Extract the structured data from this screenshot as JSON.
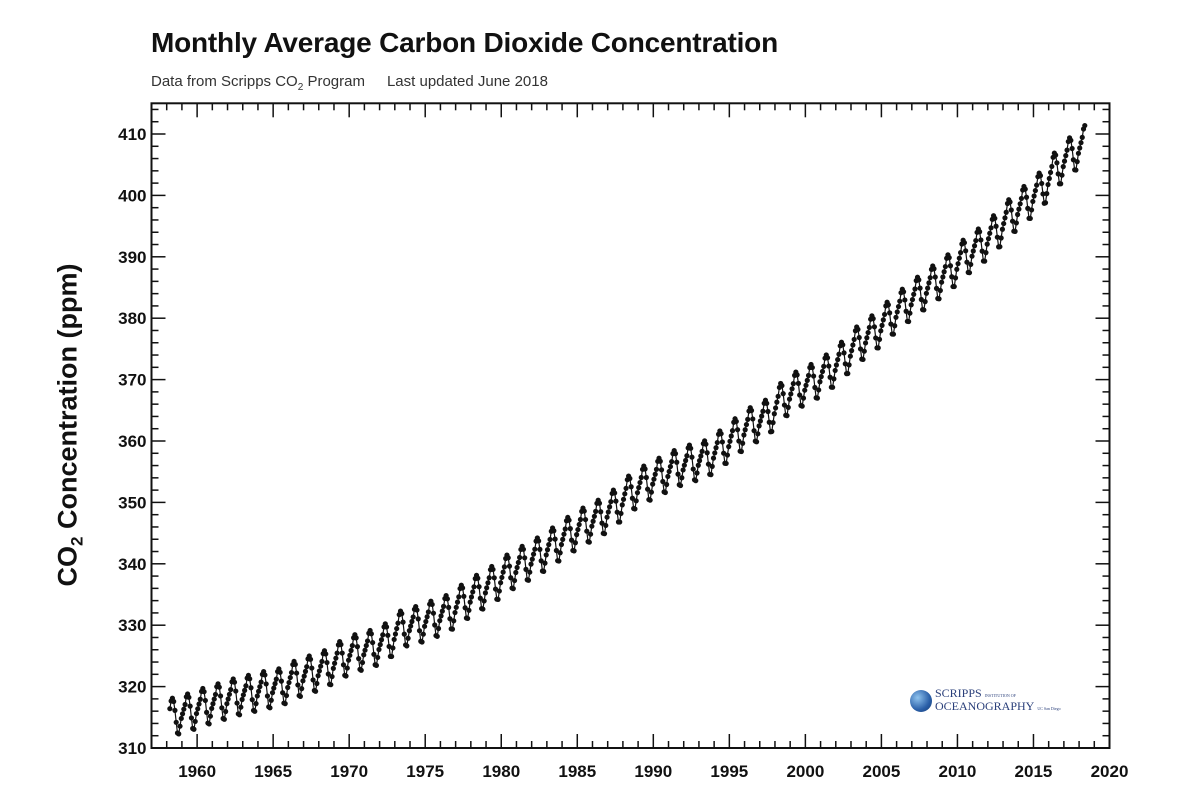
{
  "chart_data": {
    "type": "scatter",
    "title": "Monthly Average Carbon Dioxide Concentration",
    "subtitle_source_prefix": "Data from Scripps CO",
    "subtitle_source_sub": "2",
    "subtitle_source_suffix": " Program",
    "subtitle_updated": "Last updated June 2018",
    "ylabel_prefix": "CO",
    "ylabel_sub": "2",
    "ylabel_suffix": " Concentration (ppm)",
    "xlabel": "",
    "xlim": [
      1957,
      2020
    ],
    "ylim": [
      310,
      415
    ],
    "x_ticks": [
      "1960",
      "1965",
      "1970",
      "1975",
      "1980",
      "1985",
      "1990",
      "1995",
      "2000",
      "2005",
      "2010",
      "2015",
      "2020"
    ],
    "y_ticks": [
      "310",
      "320",
      "330",
      "340",
      "350",
      "360",
      "370",
      "380",
      "390",
      "400",
      "410"
    ],
    "grid": false,
    "legend": "none",
    "marker": "filled circle joined by line",
    "series_color": "#111111",
    "data_start": "1958-03",
    "data_end": "2018-05",
    "annual_mean_years": [
      1958,
      1959,
      1960,
      1961,
      1962,
      1963,
      1964,
      1965,
      1966,
      1967,
      1968,
      1969,
      1970,
      1971,
      1972,
      1973,
      1974,
      1975,
      1976,
      1977,
      1978,
      1979,
      1980,
      1981,
      1982,
      1983,
      1984,
      1985,
      1986,
      1987,
      1988,
      1989,
      1990,
      1991,
      1992,
      1993,
      1994,
      1995,
      1996,
      1997,
      1998,
      1999,
      2000,
      2001,
      2002,
      2003,
      2004,
      2005,
      2006,
      2007,
      2008,
      2009,
      2010,
      2011,
      2012,
      2013,
      2014,
      2015,
      2016,
      2017,
      2018
    ],
    "annual_mean_ppm": [
      315.3,
      315.98,
      316.91,
      317.64,
      318.45,
      318.99,
      319.62,
      320.04,
      321.37,
      322.18,
      323.05,
      324.62,
      325.68,
      326.32,
      327.46,
      329.68,
      330.19,
      331.12,
      332.03,
      333.84,
      335.41,
      336.84,
      338.76,
      340.12,
      341.48,
      343.15,
      344.87,
      346.35,
      347.61,
      349.31,
      351.69,
      353.2,
      354.45,
      355.7,
      356.54,
      357.21,
      358.96,
      360.97,
      362.74,
      363.88,
      366.84,
      368.54,
      369.71,
      371.32,
      373.45,
      375.98,
      377.7,
      379.98,
      382.09,
      384.02,
      385.83,
      387.64,
      390.1,
      391.85,
      394.06,
      396.74,
      398.81,
      401.01,
      404.41,
      406.76,
      408.72
    ],
    "seasonal_offset_ppm_jan_to_dec": [
      -0.1,
      0.6,
      1.3,
      2.5,
      2.9,
      2.3,
      0.8,
      -1.2,
      -3.0,
      -3.2,
      -2.0,
      -0.8
    ]
  },
  "logo": {
    "line1": "SCRIPPS",
    "line1_small": "INSTITUTION OF",
    "line2": "OCEANOGRAPHY",
    "line2_small": "UC San Diego"
  }
}
